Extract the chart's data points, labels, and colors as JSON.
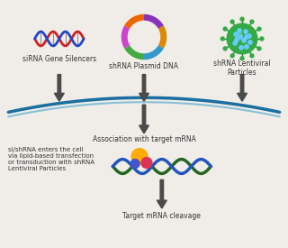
{
  "bg_color": "#f0ede8",
  "labels": {
    "sirna": "siRNA Gene Silencers",
    "shrna_plasmid": "shRNA Plasmid DNA",
    "shrna_lentiviral": "shRNA Lentiviral\nParticles",
    "association": "Association with target mRNA",
    "cell_entry": "si/shRNA enters the cell\nvia lipid-based transfection\nor transduction with shRNA\nLentiviral Particles",
    "cleavage": "Target mRNA cleavage"
  },
  "arrow_color": "#4a4a4a",
  "arc_color_main": "#1a6fa0",
  "arc_color_light": "#5aadd0",
  "dna_strand1": "#cc2222",
  "dna_strand2": "#2244cc",
  "plasmid_colors": [
    "#8833bb",
    "#dd8800",
    "#3399cc",
    "#44aa44",
    "#cc44cc",
    "#ee6600"
  ],
  "lentiviral_green": "#33aa44",
  "lentiviral_dark": "#227733",
  "lentiviral_dot": "#66ccff",
  "mrna_green": "#226622",
  "mrna_blue": "#2255bb",
  "risc_orange": "#ffaa00",
  "risc_pink": "#dd3355",
  "risc_blue": "#4455cc",
  "font_size": 5.5,
  "label_color": "#333333"
}
